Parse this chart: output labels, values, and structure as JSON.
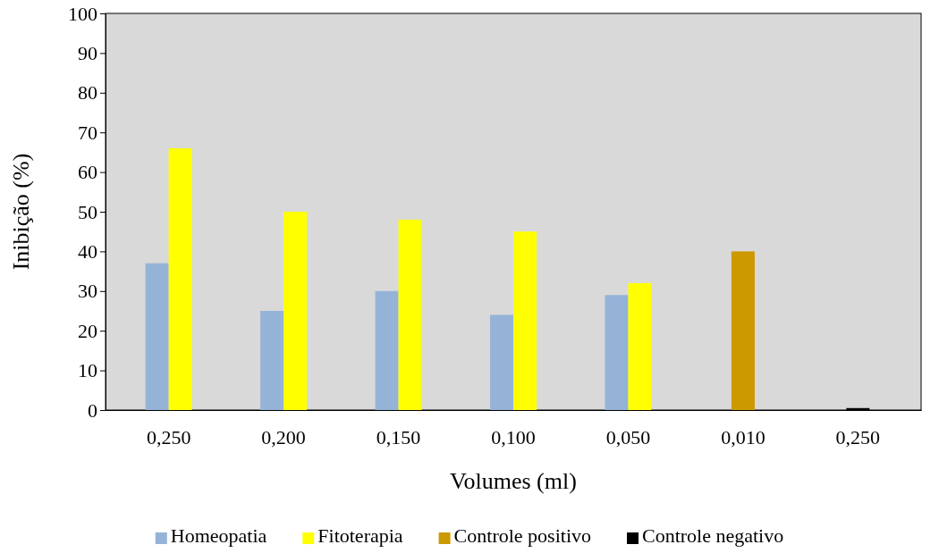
{
  "chart_data": {
    "type": "bar",
    "xlabel": "Volumes (ml)",
    "ylabel": "Inibição (%)",
    "categories": [
      "0,250",
      "0,200",
      "0,150",
      "0,100",
      "0,050",
      "0,010",
      "0,250"
    ],
    "series": [
      {
        "name": "Homeopatia",
        "color": "#95b3d7",
        "values": [
          37,
          25,
          30,
          24,
          29,
          null,
          null
        ]
      },
      {
        "name": "Fitoterapia",
        "color": "#ffff00",
        "values": [
          66,
          50,
          48,
          45,
          32,
          null,
          null
        ]
      },
      {
        "name": "Controle positivo",
        "color": "#cc9900",
        "values": [
          null,
          null,
          null,
          null,
          null,
          40,
          null
        ]
      },
      {
        "name": "Controle negativo",
        "color": "#000000",
        "values": [
          null,
          null,
          null,
          null,
          null,
          null,
          0.5
        ]
      }
    ],
    "ylim": [
      0,
      100
    ],
    "yticks": [
      0,
      10,
      20,
      30,
      40,
      50,
      60,
      70,
      80,
      90,
      100
    ],
    "grid": false,
    "legend": "bottom"
  }
}
